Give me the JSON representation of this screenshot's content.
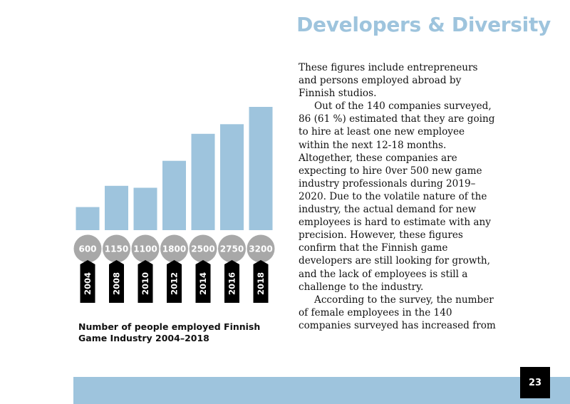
{
  "header": {
    "title": "Developers & Diversity"
  },
  "chart_data": {
    "type": "bar",
    "title": "Number of people employed Finnish Game Industry 2004–2018",
    "title_lines": [
      "Number of people employed Finnish",
      "Game Industry 2004–2018"
    ],
    "categories": [
      "2004",
      "2008",
      "2010",
      "2012",
      "2014",
      "2016",
      "2018"
    ],
    "values": [
      600,
      1150,
      1100,
      1800,
      2500,
      2750,
      3200
    ],
    "value_labels": [
      "600",
      "1150",
      "1100",
      "1800",
      "2500",
      "2750",
      "3200"
    ],
    "xlabel": "",
    "ylabel": "",
    "ylim": [
      0,
      3200
    ],
    "grid": false,
    "bar_color": "#9ec4dd",
    "label_circle_color": "#a8a8a8",
    "year_tag_color": "#000000"
  },
  "article": {
    "lines": [
      "These figures include entrepreneurs",
      "and persons employed abroad by",
      "Finnish studios.",
      "Out of the 140 companies surveyed,",
      "86 (61 %) estimated that they are going",
      "to hire at least one new employee",
      "within the next 12-18 months.",
      "Altogether, these companies are",
      "expecting to hire 0ver 500 new game",
      "industry professionals during 2019–",
      "2020. Due to the volatile nature of the",
      "industry, the actual demand for new",
      "employees is hard to estimate with any",
      "precision. However, these figures",
      "confirm that the Finnish game",
      "developers are still looking for growth,",
      "and the lack of employees is still a",
      "challenge to the industry.",
      "According to the survey, the number",
      "of female employees in the 140",
      "companies surveyed has increased from"
    ]
  },
  "footer": {
    "page_number": "23",
    "bar_color": "#9ec4dd"
  }
}
